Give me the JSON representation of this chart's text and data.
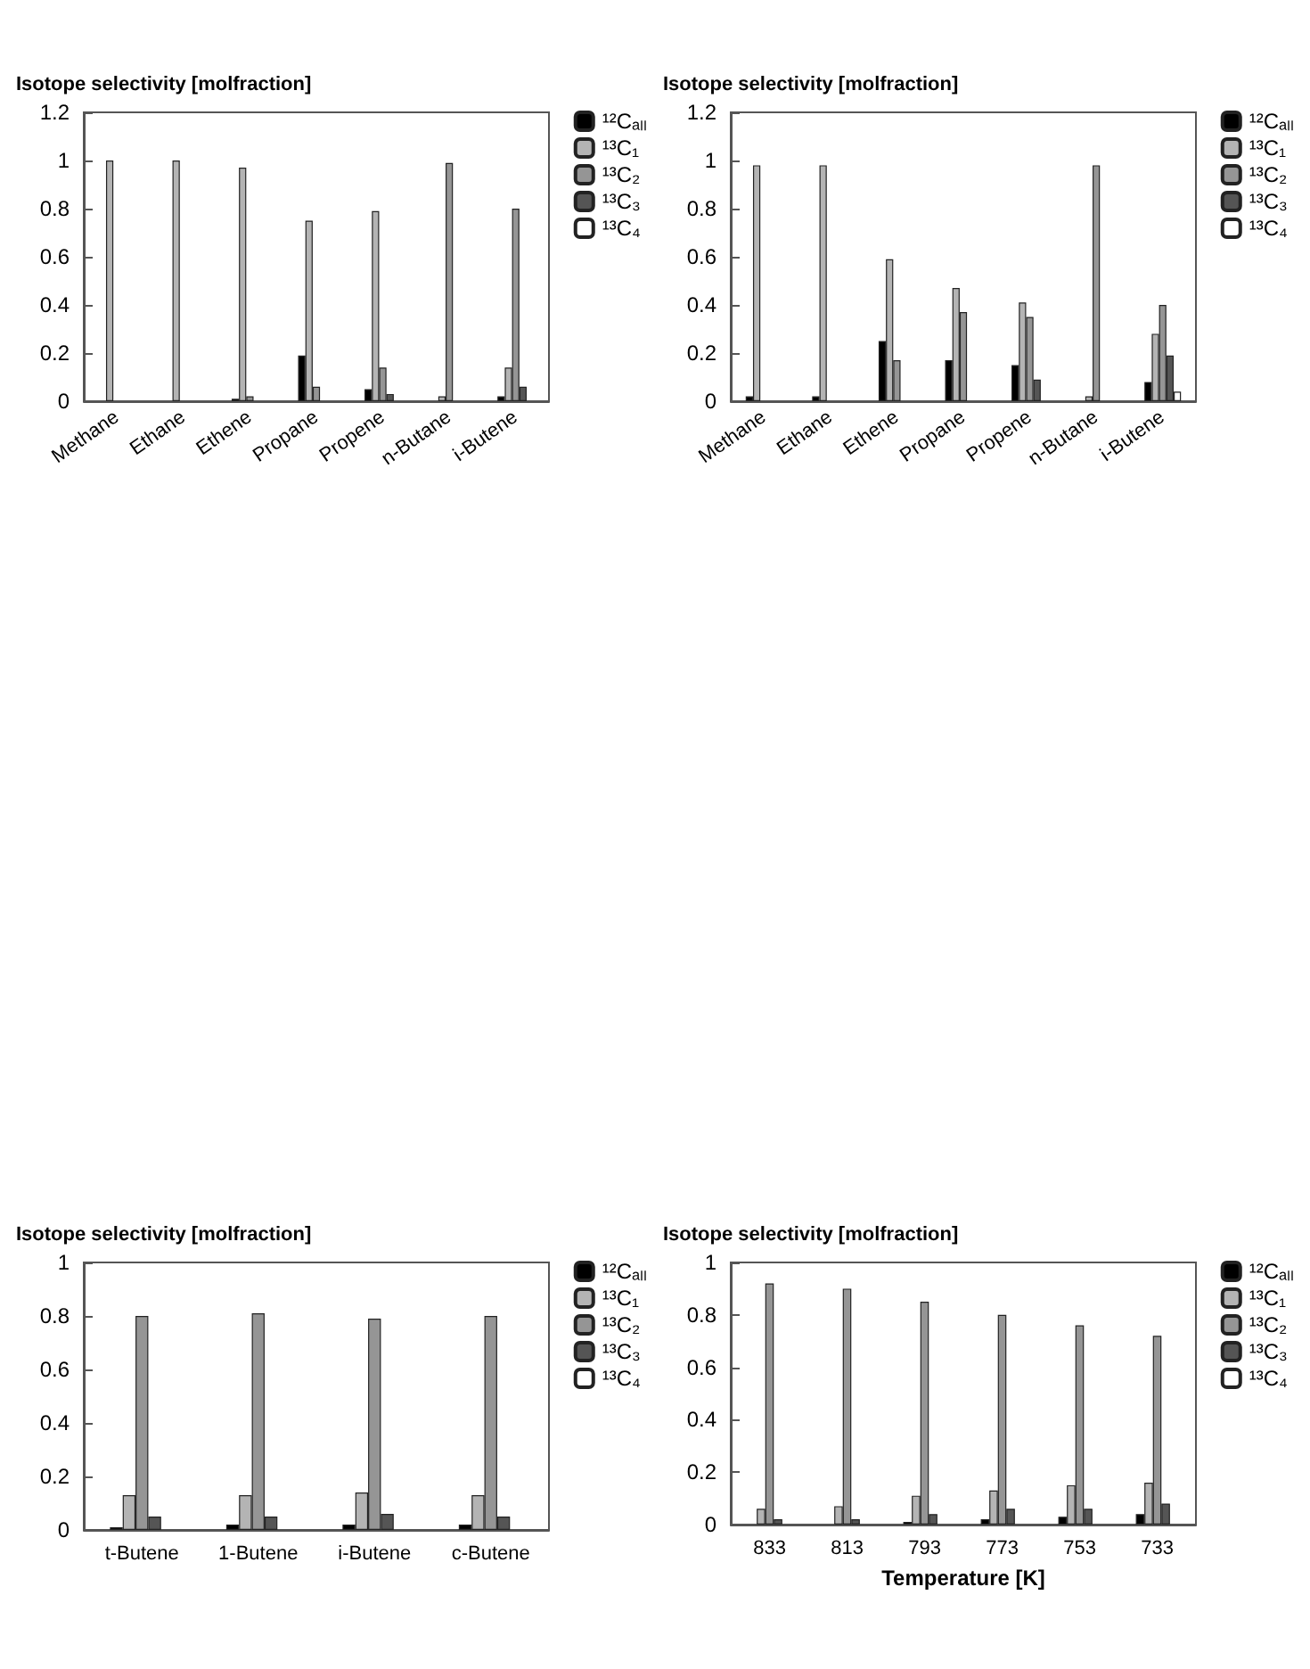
{
  "chart_data": [
    {
      "type": "bar",
      "ylabel": "Isotope selectivity [molfraction]",
      "categories": [
        "Methane",
        "Ethane",
        "Ethene",
        "Propane",
        "Propene",
        "n-Butane",
        "i-Butene"
      ],
      "ylim": [
        0,
        1.2
      ],
      "yticks": [
        0,
        0.2,
        0.4,
        0.6,
        0.8,
        1,
        1.2
      ],
      "legend": "top right",
      "grid": false,
      "series": [
        {
          "name": "¹²Cₐₗₗ",
          "color": "#000000",
          "values": [
            null,
            null,
            0.01,
            0.19,
            0.05,
            null,
            0.02
          ]
        },
        {
          "name": "¹³C₁",
          "color": "#b4b4b4",
          "values": [
            1,
            1,
            0.97,
            0.75,
            0.79,
            0.02,
            0.14
          ]
        },
        {
          "name": "¹³C₂",
          "color": "#959595",
          "values": [
            null,
            null,
            0.02,
            0.06,
            0.14,
            0.99,
            0.8
          ]
        },
        {
          "name": "¹³C₃",
          "color": "#555555",
          "values": [
            null,
            null,
            null,
            null,
            0.03,
            null,
            0.06
          ]
        },
        {
          "name": "¹³C₄",
          "color": "#ffffff",
          "values": [
            null,
            null,
            null,
            null,
            null,
            null,
            null
          ]
        }
      ]
    },
    {
      "type": "bar",
      "ylabel": "Isotope selectivity [molfraction]",
      "categories": [
        "Methane",
        "Ethane",
        "Ethene",
        "Propane",
        "Propene",
        "n-Butane",
        "i-Butene"
      ],
      "ylim": [
        0,
        1.2
      ],
      "yticks": [
        0,
        0.2,
        0.4,
        0.6,
        0.8,
        1,
        1.2
      ],
      "legend": "top right",
      "grid": false,
      "series": [
        {
          "name": "¹²Cₐₗₗ",
          "color": "#000000",
          "values": [
            0.02,
            0.02,
            0.25,
            0.17,
            0.15,
            null,
            0.08
          ]
        },
        {
          "name": "¹³C₁",
          "color": "#b4b4b4",
          "values": [
            0.98,
            0.98,
            0.59,
            0.47,
            0.41,
            0.02,
            0.28
          ]
        },
        {
          "name": "¹³C₂",
          "color": "#959595",
          "values": [
            null,
            null,
            0.17,
            0.37,
            0.35,
            0.98,
            0.4
          ]
        },
        {
          "name": "¹³C₃",
          "color": "#555555",
          "values": [
            null,
            null,
            null,
            null,
            0.09,
            null,
            0.19
          ]
        },
        {
          "name": "¹³C₄",
          "color": "#ffffff",
          "values": [
            null,
            null,
            null,
            null,
            null,
            null,
            0.04
          ]
        }
      ]
    },
    {
      "type": "bar",
      "ylabel": "Isotope selectivity [molfraction]",
      "categories": [
        "t-Butene",
        "1-Butene",
        "i-Butene",
        "c-Butene"
      ],
      "ylim": [
        0,
        1
      ],
      "yticks": [
        0,
        0.2,
        0.4,
        0.6,
        0.8,
        1
      ],
      "legend": "top right",
      "grid": false,
      "series": [
        {
          "name": "¹²Cₐₗₗ",
          "color": "#000000",
          "values": [
            0.01,
            0.02,
            0.02,
            0.02
          ]
        },
        {
          "name": "¹³C₁",
          "color": "#b4b4b4",
          "values": [
            0.13,
            0.13,
            0.14,
            0.13
          ]
        },
        {
          "name": "¹³C₂",
          "color": "#959595",
          "values": [
            0.8,
            0.81,
            0.79,
            0.8
          ]
        },
        {
          "name": "¹³C₃",
          "color": "#555555",
          "values": [
            0.05,
            0.05,
            0.06,
            0.05
          ]
        },
        {
          "name": "¹³C₄",
          "color": "#ffffff",
          "values": [
            null,
            null,
            null,
            null
          ]
        }
      ]
    },
    {
      "type": "bar",
      "ylabel": "Isotope selectivity [molfraction]",
      "xlabel": "Temperature [K]",
      "categories": [
        "833",
        "813",
        "793",
        "773",
        "753",
        "733"
      ],
      "ylim": [
        0,
        1
      ],
      "yticks": [
        0,
        0.2,
        0.4,
        0.6,
        0.8,
        1
      ],
      "legend": "top right",
      "grid": false,
      "series": [
        {
          "name": "¹²Cₐₗₗ",
          "color": "#000000",
          "values": [
            null,
            null,
            0.01,
            0.02,
            0.03,
            0.04
          ]
        },
        {
          "name": "¹³C₁",
          "color": "#b4b4b4",
          "values": [
            0.06,
            0.07,
            0.11,
            0.13,
            0.15,
            0.16
          ]
        },
        {
          "name": "¹³C₂",
          "color": "#959595",
          "values": [
            0.92,
            0.9,
            0.85,
            0.8,
            0.76,
            0.72
          ]
        },
        {
          "name": "¹³C₃",
          "color": "#555555",
          "values": [
            0.02,
            0.02,
            0.04,
            0.06,
            0.06,
            0.08
          ]
        },
        {
          "name": "¹³C₄",
          "color": "#ffffff",
          "values": [
            null,
            null,
            null,
            null,
            null,
            null
          ]
        }
      ]
    }
  ]
}
